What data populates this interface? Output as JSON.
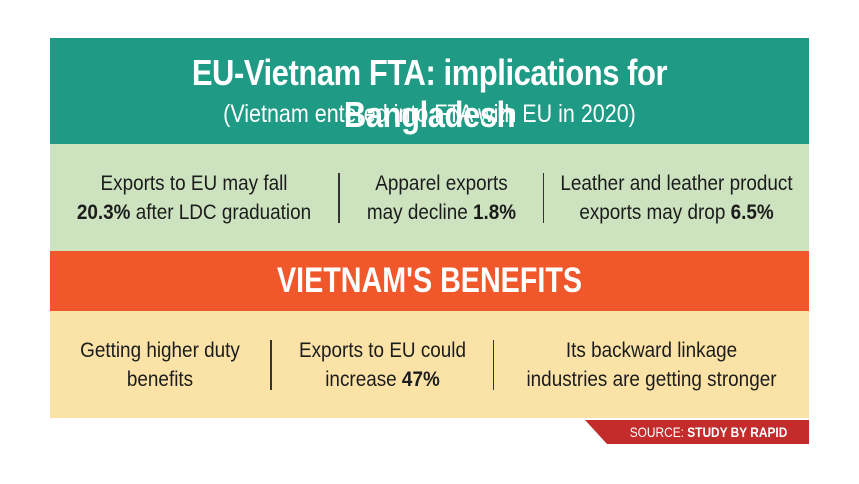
{
  "header": {
    "title": "EU-Vietnam FTA: implications for Bangladesh",
    "subtitle": "(Vietnam entered into FTA with EU in 2020)",
    "background": "#1e9a85"
  },
  "bangladesh_points": [
    {
      "pre": "Exports to EU may fall",
      "value": "20.3%",
      "post": " after LDC graduation"
    },
    {
      "pre": "Apparel exports",
      "mid": "may decline ",
      "value": "1.8%"
    },
    {
      "pre": "Leather and leather product",
      "mid": "exports may drop ",
      "value": "6.5%"
    }
  ],
  "vietnam_section": {
    "title": "VIETNAM'S BENEFITS",
    "background": "#f0572b"
  },
  "vietnam_points": [
    {
      "line1": "Getting higher duty",
      "line2": "benefits"
    },
    {
      "line1": "Exports to EU could",
      "mid": "increase ",
      "value": "47%"
    },
    {
      "line1": "Its backward linkage",
      "line2": "industries are getting stronger"
    }
  ],
  "source": {
    "label": "SOURCE:",
    "value": "STUDY BY RAPID",
    "background": "#c42b2b"
  }
}
